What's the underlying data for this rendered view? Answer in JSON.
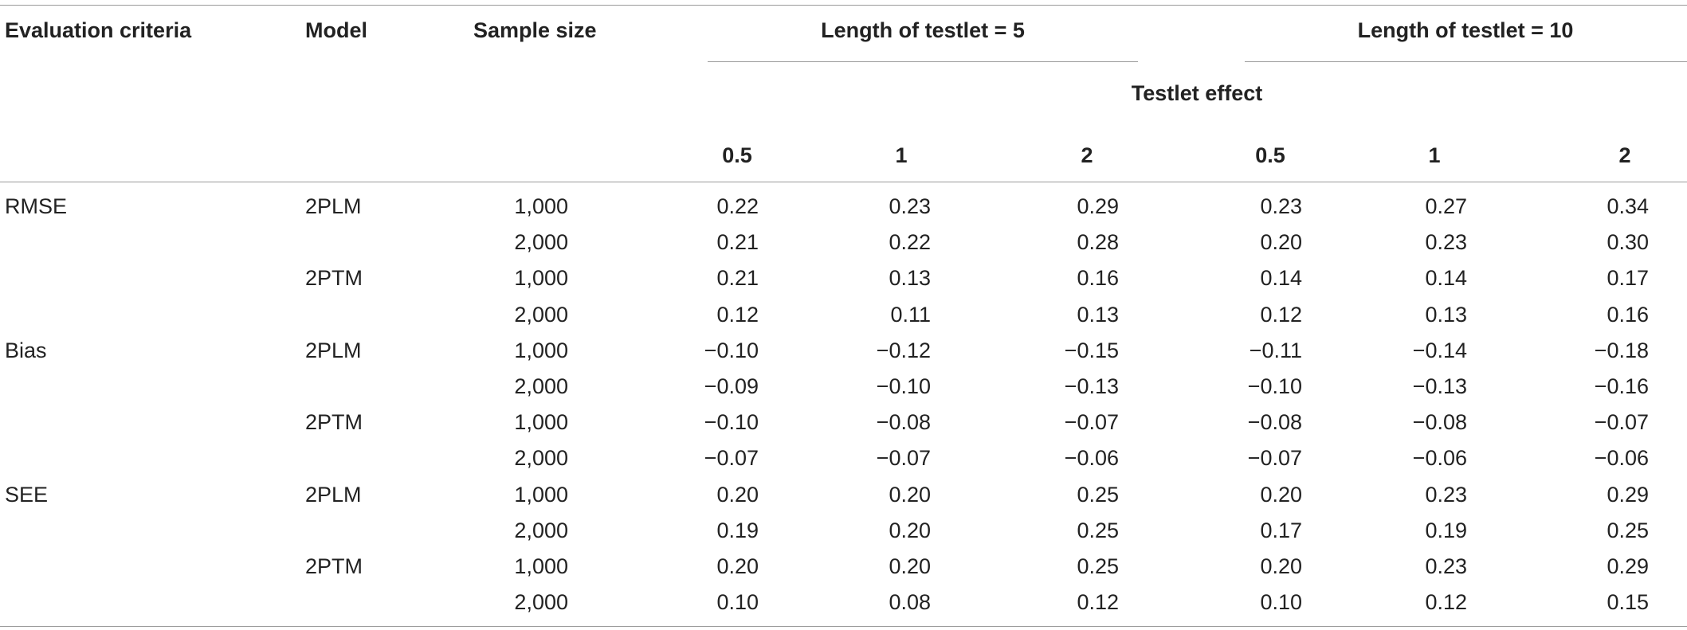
{
  "header": {
    "evaluation_criteria": "Evaluation criteria",
    "model": "Model",
    "sample_size": "Sample size",
    "group1": "Length of testlet = 5",
    "group2": "Length of testlet = 10",
    "testlet_effect": "Testlet effect",
    "effects": [
      "0.5",
      "1",
      "2",
      "0.5",
      "1",
      "2"
    ]
  },
  "rows": [
    {
      "criteria": "RMSE",
      "model": "2PLM",
      "n": "1,000",
      "v": [
        "0.22",
        "0.23",
        "0.29",
        "0.23",
        "0.27",
        "0.34"
      ]
    },
    {
      "criteria": "",
      "model": "",
      "n": "2,000",
      "v": [
        "0.21",
        "0.22",
        "0.28",
        "0.20",
        "0.23",
        "0.30"
      ]
    },
    {
      "criteria": "",
      "model": "2PTM",
      "n": "1,000",
      "v": [
        "0.21",
        "0.13",
        "0.16",
        "0.14",
        "0.14",
        "0.17"
      ]
    },
    {
      "criteria": "",
      "model": "",
      "n": "2,000",
      "v": [
        "0.12",
        "0.11",
        "0.13",
        "0.12",
        "0.13",
        "0.16"
      ]
    },
    {
      "criteria": "Bias",
      "model": "2PLM",
      "n": "1,000",
      "v": [
        "−0.10",
        "−0.12",
        "−0.15",
        "−0.11",
        "−0.14",
        "−0.18"
      ]
    },
    {
      "criteria": "",
      "model": "",
      "n": "2,000",
      "v": [
        "−0.09",
        "−0.10",
        "−0.13",
        "−0.10",
        "−0.13",
        "−0.16"
      ]
    },
    {
      "criteria": "",
      "model": "2PTM",
      "n": "1,000",
      "v": [
        "−0.10",
        "−0.08",
        "−0.07",
        "−0.08",
        "−0.08",
        "−0.07"
      ]
    },
    {
      "criteria": "",
      "model": "",
      "n": "2,000",
      "v": [
        "−0.07",
        "−0.07",
        "−0.06",
        "−0.07",
        "−0.06",
        "−0.06"
      ]
    },
    {
      "criteria": "SEE",
      "model": "2PLM",
      "n": "1,000",
      "v": [
        "0.20",
        "0.20",
        "0.25",
        "0.20",
        "0.23",
        "0.29"
      ]
    },
    {
      "criteria": "",
      "model": "",
      "n": "2,000",
      "v": [
        "0.19",
        "0.20",
        "0.25",
        "0.17",
        "0.19",
        "0.25"
      ]
    },
    {
      "criteria": "",
      "model": "2PTM",
      "n": "1,000",
      "v": [
        "0.20",
        "0.20",
        "0.25",
        "0.20",
        "0.23",
        "0.29"
      ]
    },
    {
      "criteria": "",
      "model": "",
      "n": "2,000",
      "v": [
        "0.10",
        "0.08",
        "0.12",
        "0.10",
        "0.12",
        "0.15"
      ]
    }
  ]
}
